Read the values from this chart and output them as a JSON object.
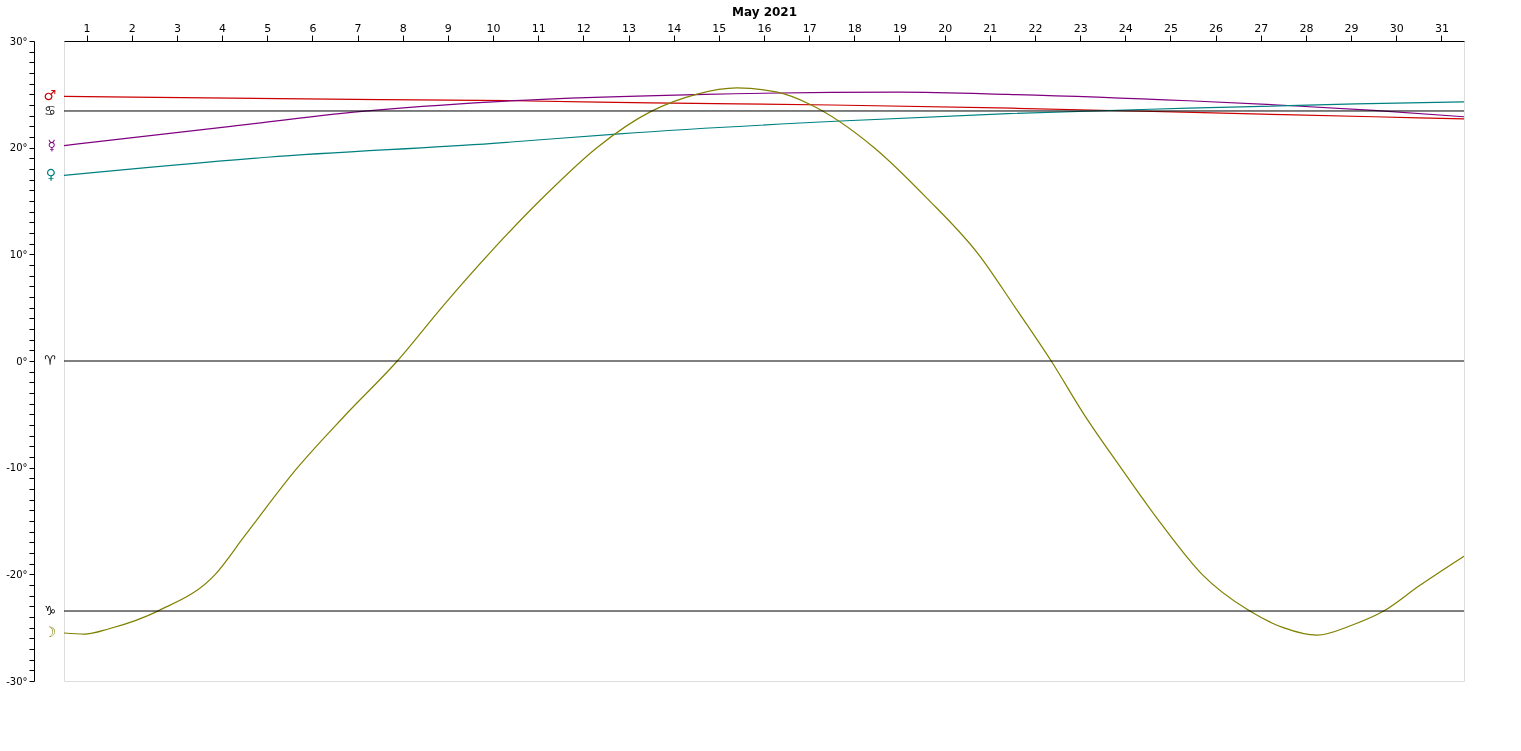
{
  "chart_data": {
    "type": "line",
    "xlabel": "May 2021",
    "xlim": [
      1,
      32
    ],
    "xticks": [
      {
        "value": 1.5,
        "label": "1"
      },
      {
        "value": 2.5,
        "label": "2"
      },
      {
        "value": 3.5,
        "label": "3"
      },
      {
        "value": 4.5,
        "label": "4"
      },
      {
        "value": 5.5,
        "label": "5"
      },
      {
        "value": 6.5,
        "label": "6"
      },
      {
        "value": 7.5,
        "label": "7"
      },
      {
        "value": 8.5,
        "label": "8"
      },
      {
        "value": 9.5,
        "label": "9"
      },
      {
        "value": 10.5,
        "label": "10"
      },
      {
        "value": 11.5,
        "label": "11"
      },
      {
        "value": 12.5,
        "label": "12"
      },
      {
        "value": 13.5,
        "label": "13"
      },
      {
        "value": 14.5,
        "label": "14"
      },
      {
        "value": 15.5,
        "label": "15"
      },
      {
        "value": 16.5,
        "label": "16"
      },
      {
        "value": 17.5,
        "label": "17"
      },
      {
        "value": 18.5,
        "label": "18"
      },
      {
        "value": 19.5,
        "label": "19"
      },
      {
        "value": 20.5,
        "label": "20"
      },
      {
        "value": 21.5,
        "label": "21"
      },
      {
        "value": 22.5,
        "label": "22"
      },
      {
        "value": 23.5,
        "label": "23"
      },
      {
        "value": 24.5,
        "label": "24"
      },
      {
        "value": 25.5,
        "label": "25"
      },
      {
        "value": 26.5,
        "label": "26"
      },
      {
        "value": 27.5,
        "label": "27"
      },
      {
        "value": 28.5,
        "label": "28"
      },
      {
        "value": 29.5,
        "label": "29"
      },
      {
        "value": 30.5,
        "label": "30"
      },
      {
        "value": 31.5,
        "label": "31"
      }
    ],
    "ylim": [
      -30,
      30
    ],
    "yticks": [
      {
        "value": -30,
        "label": "-30°"
      },
      {
        "value": -29,
        "label": null
      },
      {
        "value": -28,
        "label": null
      },
      {
        "value": -27,
        "label": null
      },
      {
        "value": -26,
        "label": null
      },
      {
        "value": -25,
        "label": null
      },
      {
        "value": -24,
        "label": null
      },
      {
        "value": -23,
        "label": null
      },
      {
        "value": -22,
        "label": null
      },
      {
        "value": -21,
        "label": null
      },
      {
        "value": -20,
        "label": "-20°"
      },
      {
        "value": -19,
        "label": null
      },
      {
        "value": -18,
        "label": null
      },
      {
        "value": -17,
        "label": null
      },
      {
        "value": -16,
        "label": null
      },
      {
        "value": -15,
        "label": null
      },
      {
        "value": -14,
        "label": null
      },
      {
        "value": -13,
        "label": null
      },
      {
        "value": -12,
        "label": null
      },
      {
        "value": -11,
        "label": null
      },
      {
        "value": -10,
        "label": "-10°"
      },
      {
        "value": -9,
        "label": null
      },
      {
        "value": -8,
        "label": null
      },
      {
        "value": -7,
        "label": null
      },
      {
        "value": -6,
        "label": null
      },
      {
        "value": -5,
        "label": null
      },
      {
        "value": -4,
        "label": null
      },
      {
        "value": -3,
        "label": null
      },
      {
        "value": -2,
        "label": null
      },
      {
        "value": -1,
        "label": null
      },
      {
        "value": 0,
        "label": "0°"
      },
      {
        "value": 1,
        "label": null
      },
      {
        "value": 2,
        "label": null
      },
      {
        "value": 3,
        "label": null
      },
      {
        "value": 4,
        "label": null
      },
      {
        "value": 5,
        "label": null
      },
      {
        "value": 6,
        "label": null
      },
      {
        "value": 7,
        "label": null
      },
      {
        "value": 8,
        "label": null
      },
      {
        "value": 9,
        "label": null
      },
      {
        "value": 10,
        "label": "10°"
      },
      {
        "value": 11,
        "label": null
      },
      {
        "value": 12,
        "label": null
      },
      {
        "value": 13,
        "label": null
      },
      {
        "value": 14,
        "label": null
      },
      {
        "value": 15,
        "label": null
      },
      {
        "value": 16,
        "label": null
      },
      {
        "value": 17,
        "label": null
      },
      {
        "value": 18,
        "label": null
      },
      {
        "value": 19,
        "label": null
      },
      {
        "value": 20,
        "label": "20°"
      },
      {
        "value": 21,
        "label": null
      },
      {
        "value": 22,
        "label": null
      },
      {
        "value": 23,
        "label": null
      },
      {
        "value": 24,
        "label": null
      },
      {
        "value": 25,
        "label": null
      },
      {
        "value": 26,
        "label": null
      },
      {
        "value": 27,
        "label": null
      },
      {
        "value": 28,
        "label": null
      },
      {
        "value": 29,
        "label": null
      },
      {
        "value": 30,
        "label": "30°"
      }
    ],
    "grid": false,
    "legend": false,
    "line_style": "solid",
    "series": [
      {
        "name": "♂",
        "color": "#cc0000",
        "x": [
          1,
          8,
          11,
          14,
          18,
          22,
          26,
          30,
          32
        ],
        "values": [
          24.8,
          24.5,
          24.4,
          24.2,
          24.0,
          23.7,
          23.3,
          22.9,
          22.7
        ]
      },
      {
        "name": "☿",
        "color": "#800080",
        "x": [
          1,
          4.5,
          7.6,
          10.5,
          15.2,
          19.5,
          21.9,
          25.9,
          27.9,
          30,
          32
        ],
        "values": [
          20.2,
          21.9,
          23.4,
          24.3,
          25.0,
          25.2,
          25.0,
          24.4,
          24.0,
          23.5,
          22.9
        ]
      },
      {
        "name": "♀",
        "color": "#008080",
        "x": [
          1,
          5.5,
          10.5,
          13.3,
          18.2,
          21.9,
          25.9,
          29.6,
          32
        ],
        "values": [
          17.4,
          19.1,
          20.4,
          21.3,
          22.5,
          23.2,
          23.7,
          24.1,
          24.3
        ]
      },
      {
        "name": "☽",
        "color": "#808000",
        "x": [
          1,
          1.45,
          2,
          3.1,
          4.35,
          5,
          6.17,
          7.2,
          8.38,
          9.4,
          10.4,
          11.6,
          12.8,
          14,
          15,
          15.9,
          16.8,
          17.5,
          18.94,
          20.1,
          21.25,
          22.05,
          22.86,
          23.6,
          24.4,
          25.3,
          26.2,
          27.24,
          28,
          28.74,
          29.5,
          30.24,
          31,
          32
        ],
        "values": [
          -25.5,
          -25.6,
          -25.1,
          -23.4,
          -20,
          -16.4,
          -10,
          -5.2,
          0,
          5.2,
          10,
          15.3,
          20,
          23.4,
          25.0,
          25.6,
          25.2,
          24.1,
          20,
          15.3,
          10,
          5.1,
          0,
          -5.1,
          -10,
          -15.3,
          -20,
          -23.4,
          -25.0,
          -25.7,
          -24.8,
          -23.4,
          -21.1,
          -18.3
        ]
      }
    ],
    "ref_lines": [
      {
        "axis": "y",
        "value": 23.44,
        "label": "♋",
        "color": "#000000"
      },
      {
        "axis": "y",
        "value": 0,
        "label": "♈",
        "color": "#000000"
      },
      {
        "axis": "y",
        "value": -23.44,
        "label": "♑",
        "color": "#000000"
      }
    ]
  }
}
